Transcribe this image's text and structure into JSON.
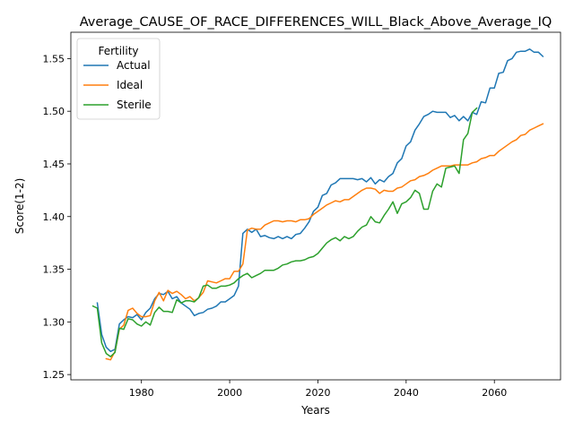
{
  "chart_data": {
    "type": "line",
    "title": "Average_CAUSE_OF_RACE_DIFFERENCES_WILL_Black_Above_Average_IQ",
    "xlabel": "Years",
    "ylabel": "Score(1-2)",
    "xlim": [
      1964,
      2075
    ],
    "ylim": [
      1.245,
      1.575
    ],
    "xticks": [
      1980,
      2000,
      2020,
      2040,
      2060
    ],
    "yticks": [
      1.25,
      1.3,
      1.35,
      1.4,
      1.45,
      1.5,
      1.55
    ],
    "ytick_labels": [
      "1.25",
      "1.30",
      "1.35",
      "1.40",
      "1.45",
      "1.50",
      "1.55"
    ],
    "grid": false,
    "legend": {
      "title": "Fertility",
      "placement": "top-left"
    },
    "series": [
      {
        "name": "Actual",
        "color": "#1f77b4",
        "points": [
          [
            1970,
            1.318
          ],
          [
            1971,
            1.288
          ],
          [
            1972,
            1.276
          ],
          [
            1973,
            1.272
          ],
          [
            1974,
            1.274
          ],
          [
            1975,
            1.298
          ],
          [
            1976,
            1.302
          ],
          [
            1977,
            1.305
          ],
          [
            1978,
            1.304
          ],
          [
            1979,
            1.307
          ],
          [
            1980,
            1.302
          ],
          [
            1981,
            1.309
          ],
          [
            1982,
            1.313
          ],
          [
            1983,
            1.322
          ],
          [
            1984,
            1.327
          ],
          [
            1985,
            1.326
          ],
          [
            1986,
            1.329
          ],
          [
            1987,
            1.322
          ],
          [
            1988,
            1.324
          ],
          [
            1989,
            1.318
          ],
          [
            1990,
            1.315
          ],
          [
            1991,
            1.312
          ],
          [
            1992,
            1.306
          ],
          [
            1993,
            1.308
          ],
          [
            1994,
            1.309
          ],
          [
            1995,
            1.312
          ],
          [
            1996,
            1.313
          ],
          [
            1997,
            1.315
          ],
          [
            1998,
            1.319
          ],
          [
            1999,
            1.319
          ],
          [
            2000,
            1.322
          ],
          [
            2001,
            1.325
          ],
          [
            2002,
            1.334
          ],
          [
            2003,
            1.384
          ],
          [
            2004,
            1.388
          ],
          [
            2005,
            1.385
          ],
          [
            2006,
            1.388
          ],
          [
            2007,
            1.381
          ],
          [
            2008,
            1.382
          ],
          [
            2009,
            1.38
          ],
          [
            2010,
            1.379
          ],
          [
            2011,
            1.381
          ],
          [
            2012,
            1.379
          ],
          [
            2013,
            1.381
          ],
          [
            2014,
            1.379
          ],
          [
            2015,
            1.383
          ],
          [
            2016,
            1.384
          ],
          [
            2017,
            1.389
          ],
          [
            2018,
            1.395
          ],
          [
            2019,
            1.405
          ],
          [
            2020,
            1.409
          ],
          [
            2021,
            1.42
          ],
          [
            2022,
            1.422
          ],
          [
            2023,
            1.43
          ],
          [
            2024,
            1.432
          ],
          [
            2025,
            1.436
          ],
          [
            2026,
            1.436
          ],
          [
            2027,
            1.436
          ],
          [
            2028,
            1.436
          ],
          [
            2029,
            1.435
          ],
          [
            2030,
            1.436
          ],
          [
            2031,
            1.433
          ],
          [
            2032,
            1.437
          ],
          [
            2033,
            1.431
          ],
          [
            2034,
            1.435
          ],
          [
            2035,
            1.433
          ],
          [
            2036,
            1.438
          ],
          [
            2037,
            1.441
          ],
          [
            2038,
            1.451
          ],
          [
            2039,
            1.455
          ],
          [
            2040,
            1.467
          ],
          [
            2041,
            1.471
          ],
          [
            2042,
            1.482
          ],
          [
            2043,
            1.488
          ],
          [
            2044,
            1.495
          ],
          [
            2045,
            1.497
          ],
          [
            2046,
            1.5
          ],
          [
            2047,
            1.499
          ],
          [
            2048,
            1.499
          ],
          [
            2049,
            1.499
          ],
          [
            2050,
            1.494
          ],
          [
            2051,
            1.496
          ],
          [
            2052,
            1.491
          ],
          [
            2053,
            1.495
          ],
          [
            2054,
            1.491
          ],
          [
            2055,
            1.499
          ],
          [
            2056,
            1.497
          ],
          [
            2057,
            1.509
          ],
          [
            2058,
            1.508
          ],
          [
            2059,
            1.522
          ],
          [
            2060,
            1.522
          ],
          [
            2061,
            1.536
          ],
          [
            2062,
            1.537
          ],
          [
            2063,
            1.548
          ],
          [
            2064,
            1.55
          ],
          [
            2065,
            1.556
          ],
          [
            2066,
            1.557
          ],
          [
            2067,
            1.557
          ],
          [
            2068,
            1.559
          ],
          [
            2069,
            1.556
          ],
          [
            2070,
            1.556
          ],
          [
            2071,
            1.552
          ]
        ]
      },
      {
        "name": "Ideal",
        "color": "#ff7f0e",
        "points": [
          [
            1972,
            1.265
          ],
          [
            1973,
            1.264
          ],
          [
            1974,
            1.272
          ],
          [
            1975,
            1.293
          ],
          [
            1976,
            1.297
          ],
          [
            1977,
            1.311
          ],
          [
            1978,
            1.313
          ],
          [
            1979,
            1.308
          ],
          [
            1980,
            1.305
          ],
          [
            1981,
            1.305
          ],
          [
            1982,
            1.306
          ],
          [
            1983,
            1.32
          ],
          [
            1984,
            1.328
          ],
          [
            1985,
            1.32
          ],
          [
            1986,
            1.33
          ],
          [
            1987,
            1.327
          ],
          [
            1988,
            1.329
          ],
          [
            1989,
            1.326
          ],
          [
            1990,
            1.322
          ],
          [
            1991,
            1.324
          ],
          [
            1992,
            1.32
          ],
          [
            1993,
            1.323
          ],
          [
            1994,
            1.328
          ],
          [
            1995,
            1.339
          ],
          [
            1996,
            1.338
          ],
          [
            1997,
            1.337
          ],
          [
            1998,
            1.339
          ],
          [
            1999,
            1.341
          ],
          [
            2000,
            1.341
          ],
          [
            2001,
            1.348
          ],
          [
            2002,
            1.348
          ],
          [
            2003,
            1.355
          ],
          [
            2004,
            1.387
          ],
          [
            2005,
            1.389
          ],
          [
            2006,
            1.388
          ],
          [
            2007,
            1.388
          ],
          [
            2008,
            1.392
          ],
          [
            2009,
            1.394
          ],
          [
            2010,
            1.396
          ],
          [
            2011,
            1.396
          ],
          [
            2012,
            1.395
          ],
          [
            2013,
            1.396
          ],
          [
            2014,
            1.396
          ],
          [
            2015,
            1.395
          ],
          [
            2016,
            1.397
          ],
          [
            2017,
            1.397
          ],
          [
            2018,
            1.398
          ],
          [
            2019,
            1.402
          ],
          [
            2020,
            1.405
          ],
          [
            2021,
            1.408
          ],
          [
            2022,
            1.411
          ],
          [
            2023,
            1.413
          ],
          [
            2024,
            1.415
          ],
          [
            2025,
            1.414
          ],
          [
            2026,
            1.416
          ],
          [
            2027,
            1.416
          ],
          [
            2028,
            1.419
          ],
          [
            2029,
            1.422
          ],
          [
            2030,
            1.425
          ],
          [
            2031,
            1.427
          ],
          [
            2032,
            1.427
          ],
          [
            2033,
            1.426
          ],
          [
            2034,
            1.422
          ],
          [
            2035,
            1.425
          ],
          [
            2036,
            1.424
          ],
          [
            2037,
            1.424
          ],
          [
            2038,
            1.427
          ],
          [
            2039,
            1.428
          ],
          [
            2040,
            1.431
          ],
          [
            2041,
            1.434
          ],
          [
            2042,
            1.435
          ],
          [
            2043,
            1.438
          ],
          [
            2044,
            1.439
          ],
          [
            2045,
            1.441
          ],
          [
            2046,
            1.444
          ],
          [
            2047,
            1.446
          ],
          [
            2048,
            1.448
          ],
          [
            2049,
            1.448
          ],
          [
            2050,
            1.448
          ],
          [
            2051,
            1.449
          ],
          [
            2052,
            1.449
          ],
          [
            2053,
            1.449
          ],
          [
            2054,
            1.449
          ],
          [
            2055,
            1.451
          ],
          [
            2056,
            1.452
          ],
          [
            2057,
            1.455
          ],
          [
            2058,
            1.456
          ],
          [
            2059,
            1.458
          ],
          [
            2060,
            1.458
          ],
          [
            2061,
            1.462
          ],
          [
            2062,
            1.465
          ],
          [
            2063,
            1.468
          ],
          [
            2064,
            1.471
          ],
          [
            2065,
            1.473
          ],
          [
            2066,
            1.477
          ],
          [
            2067,
            1.478
          ],
          [
            2068,
            1.482
          ],
          [
            2069,
            1.484
          ],
          [
            2070,
            1.486
          ],
          [
            2071,
            1.488
          ]
        ]
      },
      {
        "name": "Sterile",
        "color": "#2ca02c",
        "points": [
          [
            1969,
            1.315
          ],
          [
            1970,
            1.313
          ],
          [
            1971,
            1.28
          ],
          [
            1972,
            1.27
          ],
          [
            1973,
            1.267
          ],
          [
            1974,
            1.271
          ],
          [
            1975,
            1.294
          ],
          [
            1976,
            1.293
          ],
          [
            1977,
            1.303
          ],
          [
            1978,
            1.302
          ],
          [
            1979,
            1.298
          ],
          [
            1980,
            1.296
          ],
          [
            1981,
            1.3
          ],
          [
            1982,
            1.297
          ],
          [
            1983,
            1.309
          ],
          [
            1984,
            1.314
          ],
          [
            1985,
            1.31
          ],
          [
            1986,
            1.31
          ],
          [
            1987,
            1.309
          ],
          [
            1988,
            1.321
          ],
          [
            1989,
            1.318
          ],
          [
            1990,
            1.32
          ],
          [
            1991,
            1.32
          ],
          [
            1992,
            1.319
          ],
          [
            1993,
            1.323
          ],
          [
            1994,
            1.334
          ],
          [
            1995,
            1.335
          ],
          [
            1996,
            1.332
          ],
          [
            1997,
            1.332
          ],
          [
            1998,
            1.334
          ],
          [
            1999,
            1.334
          ],
          [
            2000,
            1.335
          ],
          [
            2001,
            1.337
          ],
          [
            2002,
            1.341
          ],
          [
            2003,
            1.344
          ],
          [
            2004,
            1.346
          ],
          [
            2005,
            1.342
          ],
          [
            2006,
            1.344
          ],
          [
            2007,
            1.346
          ],
          [
            2008,
            1.349
          ],
          [
            2009,
            1.349
          ],
          [
            2010,
            1.349
          ],
          [
            2011,
            1.351
          ],
          [
            2012,
            1.354
          ],
          [
            2013,
            1.355
          ],
          [
            2014,
            1.357
          ],
          [
            2015,
            1.358
          ],
          [
            2016,
            1.358
          ],
          [
            2017,
            1.359
          ],
          [
            2018,
            1.361
          ],
          [
            2019,
            1.362
          ],
          [
            2020,
            1.365
          ],
          [
            2021,
            1.37
          ],
          [
            2022,
            1.375
          ],
          [
            2023,
            1.378
          ],
          [
            2024,
            1.38
          ],
          [
            2025,
            1.377
          ],
          [
            2026,
            1.381
          ],
          [
            2027,
            1.379
          ],
          [
            2028,
            1.381
          ],
          [
            2029,
            1.386
          ],
          [
            2030,
            1.39
          ],
          [
            2031,
            1.392
          ],
          [
            2032,
            1.4
          ],
          [
            2033,
            1.395
          ],
          [
            2034,
            1.394
          ],
          [
            2035,
            1.401
          ],
          [
            2036,
            1.407
          ],
          [
            2037,
            1.414
          ],
          [
            2038,
            1.403
          ],
          [
            2039,
            1.412
          ],
          [
            2040,
            1.414
          ],
          [
            2041,
            1.418
          ],
          [
            2042,
            1.425
          ],
          [
            2043,
            1.422
          ],
          [
            2044,
            1.407
          ],
          [
            2045,
            1.407
          ],
          [
            2046,
            1.424
          ],
          [
            2047,
            1.431
          ],
          [
            2048,
            1.428
          ],
          [
            2049,
            1.446
          ],
          [
            2050,
            1.447
          ],
          [
            2051,
            1.448
          ],
          [
            2052,
            1.441
          ],
          [
            2053,
            1.473
          ],
          [
            2054,
            1.479
          ],
          [
            2055,
            1.499
          ],
          [
            2056,
            1.503
          ]
        ]
      }
    ]
  }
}
